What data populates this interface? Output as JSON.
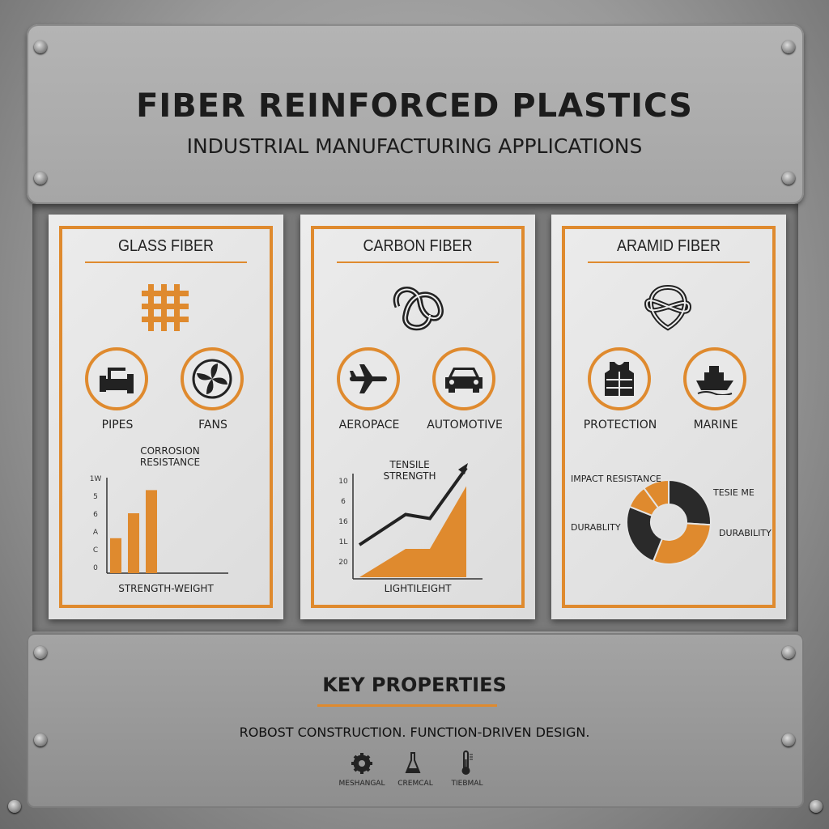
{
  "header": {
    "title": "FIBER REINFORCED PLASTICS",
    "subtitle": "INDUSTRIAL MANUFACTURING APPLICATIONS"
  },
  "colors": {
    "accent": "#df8a2e",
    "dark": "#2a2a2a"
  },
  "cards": [
    {
      "title": "GLASS FIBER",
      "icon": "woven-mesh-icon",
      "apps": [
        {
          "label": "PIPES",
          "icon": "pipe-icon"
        },
        {
          "label": "FANS",
          "icon": "fan-icon"
        }
      ],
      "chart": {
        "type": "bar",
        "title_line1": "CORROSION",
        "title_line2": "RESISTANCE",
        "xlabel": "STRENGTH-WEIGHT",
        "yticks": [
          "0",
          "C",
          "A",
          "6",
          "5",
          "1W"
        ],
        "values": [
          1.6,
          3.0,
          4.3
        ]
      }
    },
    {
      "title": "CARBON FIBER",
      "icon": "knot-icon",
      "apps": [
        {
          "label": "AEROPACE",
          "icon": "airplane-icon"
        },
        {
          "label": "AUTOMOTIVE",
          "icon": "car-icon"
        }
      ],
      "chart": {
        "type": "area",
        "title_line1": "TENSILE",
        "title_line2": "STRENGTH",
        "xlabel": "LIGHTILEIGHT",
        "yticks": [
          "20",
          "1L",
          "16",
          "6",
          "10"
        ],
        "line_values": [
          1.2,
          2.7,
          2.5,
          5.0
        ],
        "area_values": [
          0,
          1.4,
          1.4,
          4.5
        ]
      }
    },
    {
      "title": "ARAMID FIBER",
      "icon": "knot-icon",
      "apps": [
        {
          "label": "PROTECTION",
          "icon": "vest-icon"
        },
        {
          "label": "MARINE",
          "icon": "boat-icon"
        }
      ],
      "chart": {
        "type": "pie",
        "labels": [
          "IMPACT RESISTANCE",
          "TESIE ME",
          "DURABLITY",
          "DURABILITY"
        ],
        "slices": [
          {
            "value": 26,
            "color": "#2a2a2a"
          },
          {
            "value": 30,
            "color": "#df8a2e"
          },
          {
            "value": 25,
            "color": "#2a2a2a"
          },
          {
            "value": 9,
            "color": "#df8a2e"
          },
          {
            "value": 10,
            "color": "#df8a2e"
          }
        ]
      }
    }
  ],
  "footer": {
    "heading": "KEY PROPERTIES",
    "tagline": "ROBOST CONSTRUCTION. FUNCTION-DRIVEN DESIGN.",
    "properties": [
      {
        "label": "MESHANGAL",
        "icon": "gear-icon"
      },
      {
        "label": "CREMCAL",
        "icon": "flask-icon"
      },
      {
        "label": "TIEBMAL",
        "icon": "thermometer-icon"
      }
    ]
  }
}
